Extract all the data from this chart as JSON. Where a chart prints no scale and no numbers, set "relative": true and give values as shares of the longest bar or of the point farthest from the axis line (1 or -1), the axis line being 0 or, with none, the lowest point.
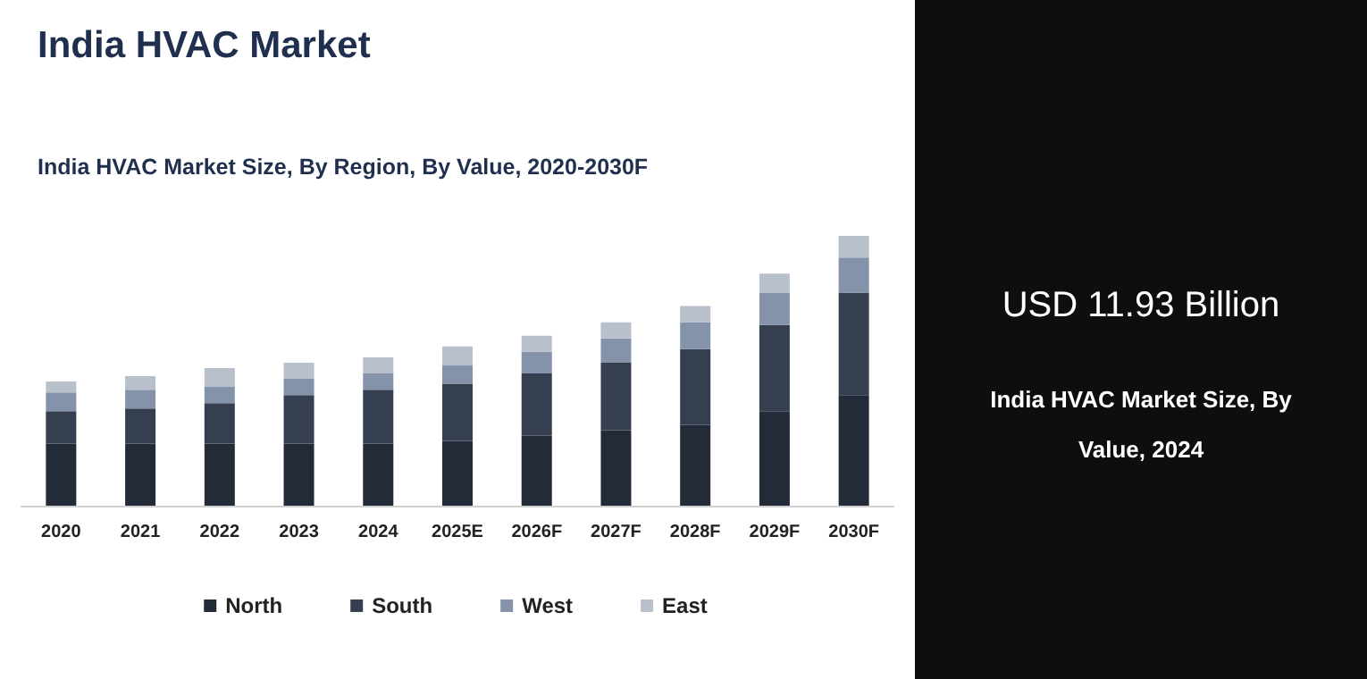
{
  "chart_data": {
    "type": "bar",
    "title": "India HVAC Market",
    "subtitle": "India HVAC Market Size, By Region, By Value, 2020-2030F",
    "categories": [
      "2020",
      "2021",
      "2022",
      "2023",
      "2024",
      "2025E",
      "2026F",
      "2027F",
      "2028F",
      "2029F",
      "2030F"
    ],
    "stacked": true,
    "relative": true,
    "legend": "bottom",
    "series": [
      {
        "name": "North",
        "color": "#242b38",
        "values": [
          0.23,
          0.23,
          0.23,
          0.23,
          0.23,
          0.24,
          0.26,
          0.28,
          0.3,
          0.35,
          0.41
        ]
      },
      {
        "name": "South",
        "color": "#363f4f",
        "values": [
          0.12,
          0.13,
          0.15,
          0.18,
          0.2,
          0.21,
          0.23,
          0.25,
          0.28,
          0.32,
          0.38
        ]
      },
      {
        "name": "West",
        "color": "#8493aa",
        "values": [
          0.07,
          0.07,
          0.06,
          0.06,
          0.06,
          0.07,
          0.08,
          0.09,
          0.1,
          0.12,
          0.13
        ]
      },
      {
        "name": "East",
        "color": "#b8c0cc",
        "values": [
          0.04,
          0.05,
          0.07,
          0.06,
          0.06,
          0.07,
          0.06,
          0.06,
          0.06,
          0.07,
          0.08
        ]
      }
    ],
    "annotations": [
      "USD 11.93 Billion",
      "India HVAC Market Size, By Value, 2024"
    ]
  }
}
